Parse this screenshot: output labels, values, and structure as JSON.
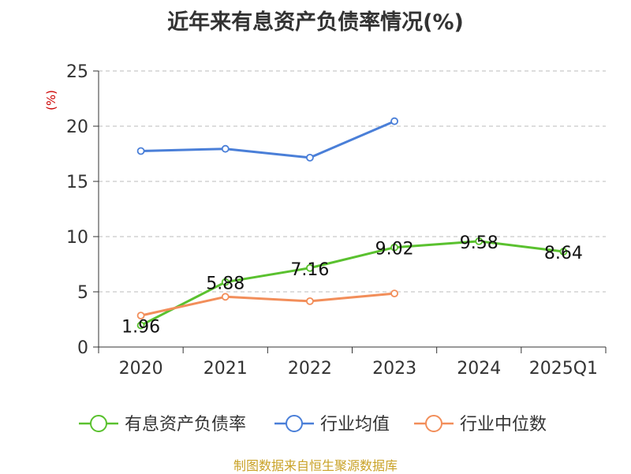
{
  "title": "近年来有息资产负债率情况(%)",
  "footer": "制图数据来自恒生聚源数据库",
  "chart_data": {
    "type": "line",
    "categories": [
      "2020",
      "2021",
      "2022",
      "2023",
      "2024",
      "2025Q1"
    ],
    "ylabel": "(%)",
    "ylim": [
      0,
      25
    ],
    "yticks": [
      0,
      5,
      10,
      15,
      20,
      25
    ],
    "grid": true,
    "legend": "bottom",
    "series": [
      {
        "name": "有息资产负债率",
        "color": "#5ac12f",
        "values": [
          1.96,
          5.88,
          7.16,
          9.02,
          9.58,
          8.64
        ],
        "labels": [
          "1.96",
          "5.88",
          "7.16",
          "9.02",
          "9.58",
          "8.64"
        ]
      },
      {
        "name": "行业均值",
        "color": "#4a7fd8",
        "values": [
          17.75,
          17.95,
          17.15,
          20.45,
          null,
          null
        ]
      },
      {
        "name": "行业中位数",
        "color": "#f28e5a",
        "values": [
          2.85,
          4.55,
          4.15,
          4.85,
          null,
          null
        ]
      }
    ]
  }
}
